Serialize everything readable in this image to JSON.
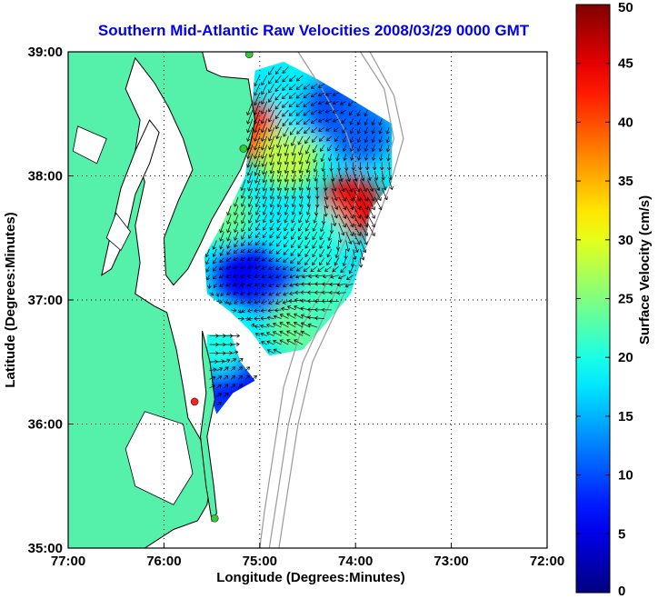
{
  "chart_data": {
    "type": "heatmap",
    "title": "Southern Mid-Atlantic Raw Velocities 2008/03/29 0000 GMT",
    "xlabel": "Longitude (Degrees:Minutes)",
    "ylabel": "Latitude (Degrees:Minutes)",
    "xlim": [
      -77,
      -72
    ],
    "ylim": [
      35,
      39
    ],
    "x_ticks": [
      {
        "value": -77,
        "label": "77:00"
      },
      {
        "value": -76,
        "label": "76:00"
      },
      {
        "value": -75,
        "label": "75:00"
      },
      {
        "value": -74,
        "label": "74:00"
      },
      {
        "value": -73,
        "label": "73:00"
      },
      {
        "value": -72,
        "label": "72:00"
      }
    ],
    "y_ticks": [
      {
        "value": 35,
        "label": "35:00"
      },
      {
        "value": 36,
        "label": "36:00"
      },
      {
        "value": 37,
        "label": "37:00"
      },
      {
        "value": 38,
        "label": "38:00"
      },
      {
        "value": 39,
        "label": "39:00"
      }
    ],
    "grid": true,
    "colorbar": {
      "label": "Surface Velocity (cm/s)",
      "min": 0,
      "max": 50,
      "ticks": [
        {
          "value": 0,
          "label": "0"
        },
        {
          "value": 5,
          "label": "5"
        },
        {
          "value": 10,
          "label": "10"
        },
        {
          "value": 15,
          "label": "15"
        },
        {
          "value": 20,
          "label": "20"
        },
        {
          "value": 25,
          "label": "25"
        },
        {
          "value": 30,
          "label": "30"
        },
        {
          "value": 35,
          "label": "35"
        },
        {
          "value": 40,
          "label": "40"
        },
        {
          "value": 45,
          "label": "45"
        },
        {
          "value": 50,
          "label": "50"
        }
      ]
    },
    "velocity_regions": [
      {
        "lon": -75.0,
        "lat": 38.35,
        "speed": 43,
        "dir": 200
      },
      {
        "lon": -74.7,
        "lat": 38.15,
        "speed": 28,
        "dir": 195
      },
      {
        "lon": -74.55,
        "lat": 38.55,
        "speed": 18,
        "dir": 230
      },
      {
        "lon": -74.25,
        "lat": 38.55,
        "speed": 10,
        "dir": 250
      },
      {
        "lon": -73.95,
        "lat": 38.35,
        "speed": 11,
        "dir": 200
      },
      {
        "lon": -74.05,
        "lat": 37.75,
        "speed": 44,
        "dir": 150
      },
      {
        "lon": -74.4,
        "lat": 37.5,
        "speed": 20,
        "dir": 210
      },
      {
        "lon": -75.4,
        "lat": 37.7,
        "speed": 24,
        "dir": 200
      },
      {
        "lon": -75.15,
        "lat": 37.2,
        "speed": 6,
        "dir": 250
      },
      {
        "lon": -74.75,
        "lat": 37.05,
        "speed": 8,
        "dir": 240
      },
      {
        "lon": -74.6,
        "lat": 36.8,
        "speed": 24,
        "dir": 300
      },
      {
        "lon": -74.35,
        "lat": 37.0,
        "speed": 22,
        "dir": 270
      },
      {
        "lon": -75.3,
        "lat": 36.4,
        "speed": 7,
        "dir": 45
      },
      {
        "lon": -75.45,
        "lat": 36.65,
        "speed": 20,
        "dir": 90
      }
    ],
    "stations": [
      {
        "lon": -75.11,
        "lat": 38.98,
        "color": "#33cc33"
      },
      {
        "lon": -75.17,
        "lat": 38.22,
        "color": "#33cc33"
      },
      {
        "lon": -75.68,
        "lat": 36.18,
        "color": "#ff2020"
      },
      {
        "lon": -75.47,
        "lat": 35.24,
        "color": "#33cc33"
      }
    ]
  },
  "colors": {
    "land": "#55f0aa",
    "water": "#ffffff",
    "coastline": "#000000",
    "bathymetry": "#999999",
    "title": "#0000ee",
    "axis_frame": "#000000"
  }
}
